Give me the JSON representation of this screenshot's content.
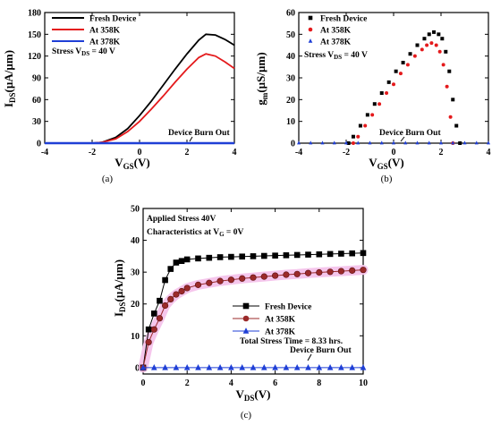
{
  "chart_data": [
    {
      "panel": "(a)",
      "type": "line",
      "xlabel": {
        "main": "V",
        "sub": "GS",
        "unit": "(V)"
      },
      "ylabel": {
        "main": "I",
        "sub": "DS",
        "unit": "(µA/µm)"
      },
      "xlim": [
        -4,
        4
      ],
      "ylim": [
        0,
        180
      ],
      "xticks": [
        "-4",
        "-2",
        "0",
        "2",
        "4"
      ],
      "yticks": [
        "0",
        "30",
        "60",
        "90",
        "120",
        "150",
        "180"
      ],
      "legend_placement": "top-left",
      "series": [
        {
          "name": "Fresh Device",
          "color": "#000000",
          "style": "line",
          "x": [
            -4,
            -2,
            -1.6,
            -1,
            -0.5,
            0,
            0.5,
            1,
            1.5,
            2,
            2.5,
            2.8,
            3.2,
            3.6,
            4
          ],
          "y": [
            0,
            0,
            1,
            8,
            20,
            38,
            58,
            80,
            102,
            123,
            142,
            150,
            149,
            143,
            135
          ]
        },
        {
          "name": "At 358K",
          "color": "#e41a1c",
          "style": "line",
          "x": [
            -4,
            -2,
            -1.6,
            -1,
            -0.5,
            0,
            0.5,
            1,
            1.5,
            2,
            2.5,
            2.8,
            3.2,
            3.6,
            4
          ],
          "y": [
            0,
            0,
            1,
            6,
            16,
            30,
            47,
            65,
            84,
            102,
            118,
            123,
            120,
            112,
            103
          ]
        },
        {
          "name": "At 378K",
          "color": "#1f3fd6",
          "style": "line",
          "x": [
            -4,
            4
          ],
          "y": [
            0,
            0
          ]
        }
      ],
      "annotations": [
        {
          "text": "Stress V",
          "sub": "DS",
          "rest": " = 40 V"
        },
        {
          "text": "Device Burn Out"
        }
      ]
    },
    {
      "panel": "(b)",
      "type": "scatter",
      "xlabel": {
        "main": "V",
        "sub": "GS",
        "unit": "(V)"
      },
      "ylabel": {
        "main": "g",
        "sub": "m",
        "unit": "(µS/µm)"
      },
      "xlim": [
        -4,
        4
      ],
      "ylim": [
        0,
        60
      ],
      "xticks": [
        "-4",
        "-2",
        "0",
        "2",
        "4"
      ],
      "yticks": [
        "0",
        "10",
        "20",
        "30",
        "40",
        "50",
        "60"
      ],
      "legend_placement": "top-left",
      "series": [
        {
          "name": "Fresh Device",
          "color": "#000000",
          "marker": "square",
          "x": [
            -1.9,
            -1.7,
            -1.4,
            -1.1,
            -0.8,
            -0.5,
            -0.2,
            0.1,
            0.4,
            0.7,
            1.0,
            1.3,
            1.5,
            1.7,
            1.9,
            2.05,
            2.2,
            2.35,
            2.5,
            2.65,
            2.8
          ],
          "y": [
            0,
            3,
            8,
            13,
            18,
            23,
            28,
            33,
            37,
            41,
            45,
            48,
            50,
            51,
            50,
            48,
            42,
            33,
            20,
            8,
            0
          ]
        },
        {
          "name": "At 358K",
          "color": "#e41a1c",
          "marker": "circle",
          "x": [
            -1.7,
            -1.5,
            -1.2,
            -0.9,
            -0.6,
            -0.3,
            0.0,
            0.3,
            0.6,
            0.9,
            1.2,
            1.4,
            1.6,
            1.8,
            1.95,
            2.1,
            2.25,
            2.4,
            2.5
          ],
          "y": [
            0,
            3,
            8,
            13,
            18,
            23,
            27,
            32,
            36,
            40,
            43,
            45,
            46,
            45,
            42,
            36,
            26,
            12,
            0
          ]
        },
        {
          "name": "At 378K",
          "color": "#1f3fd6",
          "marker": "triangle",
          "x": [
            -4,
            -3.5,
            -3,
            -2.5,
            -2,
            -1.5,
            -1,
            -0.5,
            0,
            0.5,
            1,
            1.5,
            2,
            2.5,
            3,
            3.5,
            4
          ],
          "y": [
            0,
            0,
            0,
            0,
            0,
            0,
            0,
            0,
            0,
            0,
            0,
            0,
            0,
            0,
            0,
            0,
            0
          ]
        }
      ],
      "annotations": [
        {
          "text": "Stress V",
          "sub": "DS",
          "rest": " = 40 V"
        },
        {
          "text": "Device Burn Out"
        }
      ]
    },
    {
      "panel": "(c)",
      "type": "line",
      "xlabel": {
        "main": "V",
        "sub": "DS",
        "unit": "(V)"
      },
      "ylabel": {
        "main": "I",
        "sub": "DS",
        "unit": "(µA/µm)"
      },
      "xlim": [
        0,
        10
      ],
      "ylim": [
        -2,
        50
      ],
      "xticks": [
        "0",
        "2",
        "4",
        "6",
        "8",
        "10"
      ],
      "yticks": [
        "0",
        "10",
        "20",
        "30",
        "40",
        "50"
      ],
      "legend_placement": "bottom-right",
      "series": [
        {
          "name": "Fresh Device",
          "color": "#000000",
          "marker": "square",
          "x": [
            0,
            0.25,
            0.5,
            0.75,
            1.0,
            1.25,
            1.5,
            1.75,
            2.0,
            2.5,
            3.0,
            3.5,
            4.0,
            4.5,
            5.0,
            5.5,
            6.0,
            6.5,
            7.0,
            7.5,
            8.0,
            8.5,
            9.0,
            9.5,
            10.0
          ],
          "y": [
            0,
            12,
            17,
            21,
            27.5,
            31,
            33,
            33.5,
            34,
            34.3,
            34.5,
            34.7,
            34.8,
            34.9,
            35,
            35.1,
            35.2,
            35.3,
            35.4,
            35.5,
            35.6,
            35.7,
            35.8,
            35.9,
            36
          ]
        },
        {
          "name": "At 358K",
          "color": "#9b2a2a",
          "marker": "circle",
          "x": [
            0,
            0.25,
            0.5,
            0.75,
            1.0,
            1.25,
            1.5,
            1.75,
            2.0,
            2.5,
            3.0,
            3.5,
            4.0,
            4.5,
            5.0,
            5.5,
            6.0,
            6.5,
            7.0,
            7.5,
            8.0,
            8.5,
            9.0,
            9.5,
            10.0
          ],
          "y": [
            0,
            8,
            12,
            15.5,
            19.5,
            21.5,
            23,
            24,
            25,
            26,
            26.6,
            27.2,
            27.6,
            28,
            28.3,
            28.6,
            28.9,
            29.2,
            29.4,
            29.7,
            29.9,
            30.1,
            30.3,
            30.5,
            30.7
          ]
        },
        {
          "name": "At 378K",
          "color": "#1f3fd6",
          "marker": "triangle",
          "x": [
            0,
            0.5,
            1.0,
            1.5,
            2.0,
            2.5,
            3.0,
            3.5,
            4.0,
            4.5,
            5.0,
            5.5,
            6.0,
            6.5,
            7.0,
            7.5,
            8.0,
            8.5,
            9.0,
            9.5,
            10.0
          ],
          "y": [
            0,
            0,
            0,
            0,
            0,
            0,
            0,
            0,
            0,
            0,
            0,
            0,
            0,
            0,
            0,
            0,
            0,
            0,
            0,
            0,
            0
          ]
        }
      ],
      "annotations": [
        {
          "text": "Applied Stress 40V"
        },
        {
          "text": "Characteristics at V",
          "sub": "G",
          "rest": " = 0V"
        },
        {
          "text": "Total Stress Time = 8.33 hrs."
        },
        {
          "text": "Device Burn Out"
        }
      ]
    }
  ],
  "colors": {
    "fresh": "#000000",
    "k358": "#e41a1c",
    "k358c": "#9b2a2a",
    "k378": "#1f3fd6",
    "highlight": "#f5c6ec"
  }
}
